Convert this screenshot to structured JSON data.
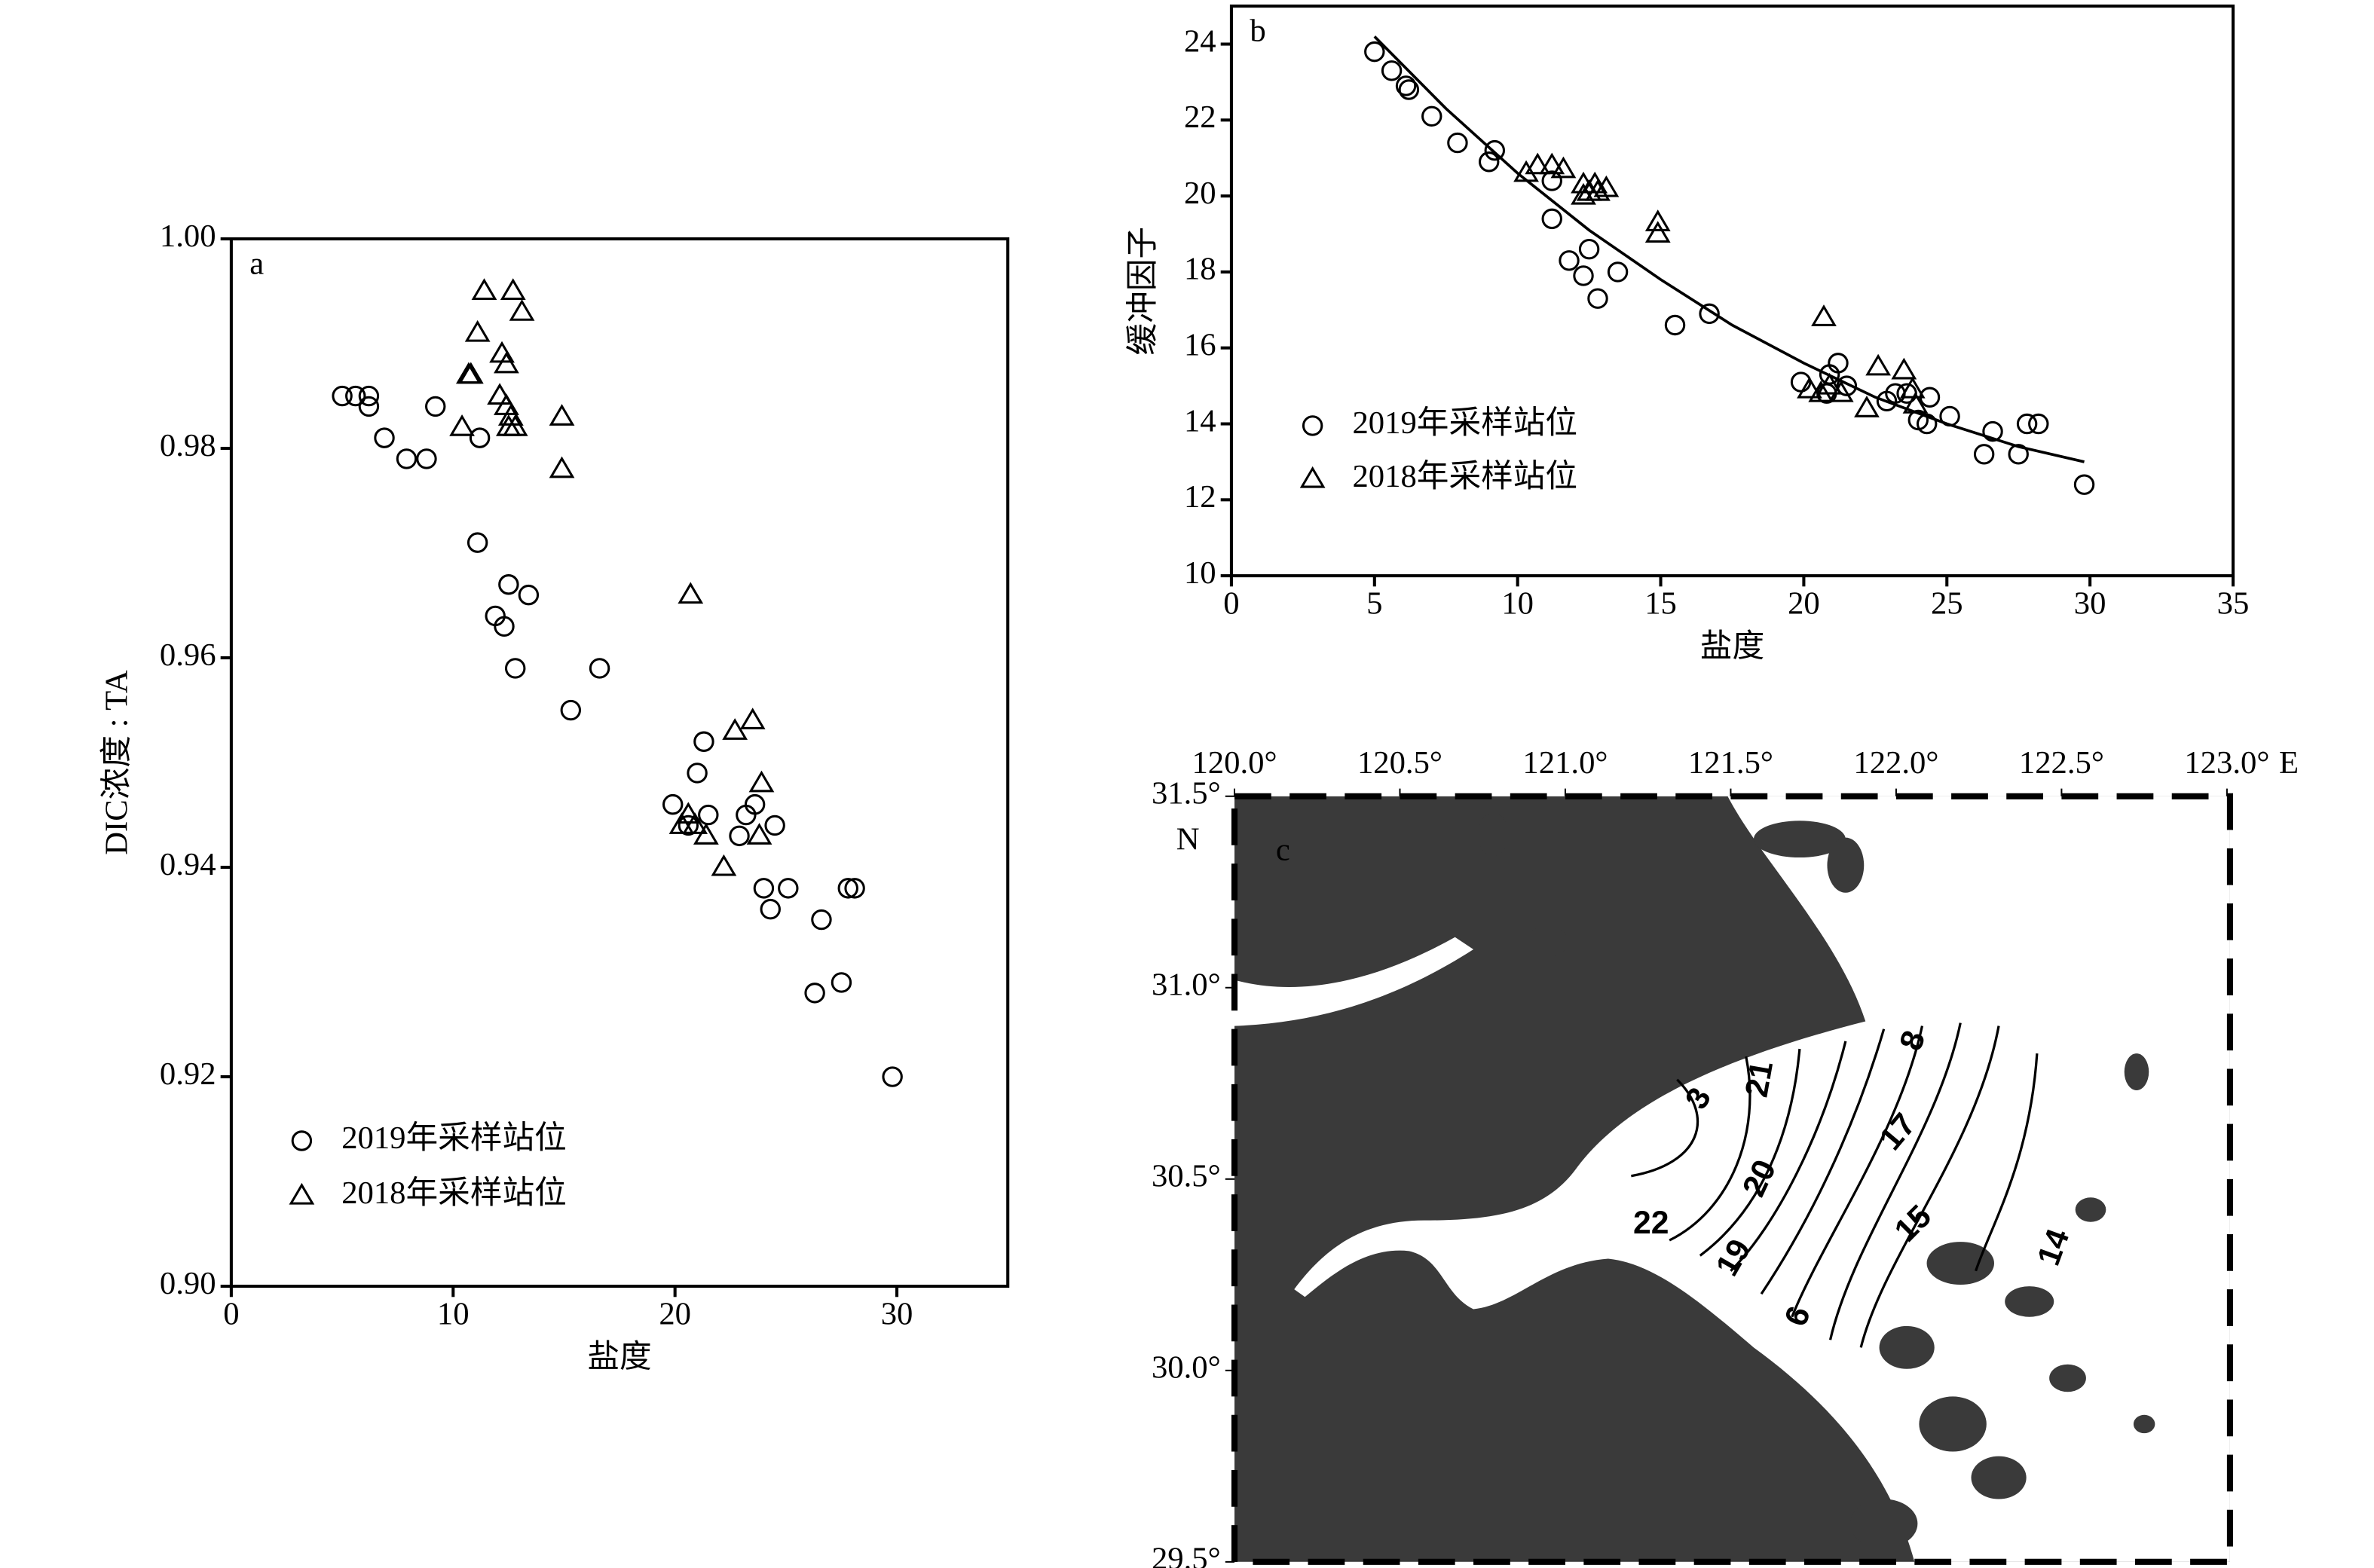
{
  "chart_data": [
    {
      "type": "scatter",
      "panel_label": "a",
      "xlabel": "盐度",
      "ylabel": "DIC浓度 : TA",
      "xlim": [
        0,
        35
      ],
      "ylim": [
        0.9,
        1.0
      ],
      "xticks": [
        0,
        10,
        20,
        30
      ],
      "yticks": [
        {
          "value": 0.9,
          "label": "0.90"
        },
        0.92,
        0.94,
        0.96,
        0.98,
        {
          "value": 1.0,
          "label": "1.00"
        }
      ],
      "legend": "lower left",
      "series": [
        {
          "name": "2019年采样站位",
          "marker": "circle",
          "color": "#000000",
          "x": [
            5.0,
            5.6,
            6.2,
            6.2,
            6.9,
            7.9,
            8.8,
            9.2,
            11.2,
            11.1,
            11.9,
            12.3,
            12.5,
            12.8,
            13.4,
            15.3,
            16.6,
            19.9,
            21.0,
            21.3,
            21.5,
            20.6,
            22.9,
            23.2,
            23.6,
            24.0,
            24.3,
            24.5,
            25.1,
            26.6,
            26.3,
            27.5,
            27.8,
            28.1,
            29.8
          ],
          "values": [
            0.985,
            0.985,
            0.985,
            0.984,
            0.981,
            0.979,
            0.979,
            0.984,
            0.981,
            0.971,
            0.964,
            0.963,
            0.967,
            0.959,
            0.966,
            0.955,
            0.959,
            0.946,
            0.949,
            0.952,
            0.945,
            0.944,
            0.943,
            0.945,
            0.946,
            0.938,
            0.936,
            0.944,
            0.938,
            0.935,
            0.928,
            0.929,
            0.938,
            0.938,
            0.92
          ]
        },
        {
          "name": "2018年采样站位",
          "marker": "triangle",
          "color": "#000000",
          "x": [
            11.4,
            12.7,
            13.1,
            11.1,
            10.7,
            10.8,
            12.2,
            12.4,
            10.4,
            12.1,
            12.4,
            12.6,
            12.8,
            12.5,
            14.9,
            14.9,
            20.7,
            20.3,
            20.6,
            20.9,
            21.4,
            22.2,
            22.7,
            23.5,
            23.9,
            23.8
          ],
          "values": [
            0.995,
            0.995,
            0.993,
            0.991,
            0.987,
            0.987,
            0.989,
            0.988,
            0.982,
            0.985,
            0.984,
            0.983,
            0.982,
            0.982,
            0.983,
            0.978,
            0.966,
            0.944,
            0.945,
            0.944,
            0.943,
            0.94,
            0.953,
            0.954,
            0.948,
            0.943
          ]
        }
      ]
    },
    {
      "type": "scatter",
      "panel_label": "b",
      "xlabel": "盐度",
      "ylabel": "缓冲因子",
      "xlim": [
        0,
        35
      ],
      "ylim": [
        10,
        25
      ],
      "xticks": [
        0,
        5,
        10,
        15,
        20,
        25,
        30,
        35
      ],
      "yticks": [
        10,
        12,
        14,
        16,
        18,
        20,
        22,
        24
      ],
      "legend": "lower left",
      "series": [
        {
          "name": "2019年采样站位",
          "marker": "circle",
          "color": "#000000",
          "x": [
            5.0,
            5.6,
            6.1,
            6.2,
            7.0,
            7.9,
            9.0,
            9.2,
            11.2,
            11.2,
            11.8,
            12.3,
            12.5,
            12.8,
            13.5,
            15.5,
            16.7,
            19.9,
            20.9,
            21.2,
            21.5,
            20.8,
            22.9,
            23.2,
            23.6,
            24.0,
            24.3,
            24.4,
            25.1,
            26.6,
            26.3,
            27.5,
            27.8,
            28.2,
            29.8
          ],
          "values": [
            23.8,
            23.3,
            22.9,
            22.8,
            22.1,
            21.4,
            20.9,
            21.2,
            20.4,
            19.4,
            18.3,
            17.9,
            18.6,
            17.3,
            18.0,
            16.6,
            16.9,
            15.1,
            15.3,
            15.6,
            15.0,
            14.8,
            14.6,
            14.8,
            14.8,
            14.1,
            14.0,
            14.7,
            14.2,
            13.8,
            13.2,
            13.2,
            14.0,
            14.0,
            12.4
          ]
        },
        {
          "name": "2018年采样站位",
          "marker": "triangle",
          "color": "#000000",
          "x": [
            10.3,
            10.7,
            11.2,
            11.6,
            12.3,
            12.3,
            12.5,
            12.7,
            12.8,
            13.1,
            14.9,
            14.9,
            20.7,
            20.2,
            20.6,
            20.9,
            21.3,
            22.2,
            22.6,
            23.5,
            23.8,
            23.9
          ],
          "values": [
            20.6,
            20.8,
            20.8,
            20.7,
            20.3,
            20.0,
            20.1,
            20.3,
            20.1,
            20.2,
            19.3,
            19.0,
            16.8,
            14.9,
            14.8,
            15.0,
            14.8,
            14.4,
            15.5,
            15.4,
            14.9,
            14.5
          ]
        }
      ],
      "fit": {
        "x": [
          5,
          7.5,
          10,
          12.5,
          15,
          17.5,
          20,
          22.5,
          25,
          27.5,
          29.8
        ],
        "values": [
          24.2,
          22.3,
          20.6,
          19.1,
          17.8,
          16.6,
          15.6,
          14.7,
          14.0,
          13.4,
          13.0
        ]
      }
    }
  ],
  "map": {
    "panel_label": "c",
    "lon_ticks": [
      {
        "value": 120.0,
        "label": "120.0°"
      },
      {
        "value": 120.5,
        "label": "120.5°"
      },
      {
        "value": 121.0,
        "label": "121.0°"
      },
      {
        "value": 121.5,
        "label": "121.5°"
      },
      {
        "value": 122.0,
        "label": "122.0°"
      },
      {
        "value": 122.5,
        "label": "122.5°"
      },
      {
        "value": 123.0,
        "label": "123.0°"
      }
    ],
    "lat_ticks": [
      {
        "value": 31.5,
        "label": "31.5°"
      },
      {
        "value": 31.0,
        "label": "31.0°"
      },
      {
        "value": 30.5,
        "label": "30.5°"
      },
      {
        "value": 30.0,
        "label": "30.0°"
      },
      {
        "value": 29.5,
        "label": "29.5°"
      }
    ],
    "lon_unit": "E",
    "lat_unit": "N",
    "contour_labels": [
      "3",
      "21",
      "8",
      "17",
      "20",
      "22",
      "19",
      "15",
      "6",
      "14"
    ]
  }
}
